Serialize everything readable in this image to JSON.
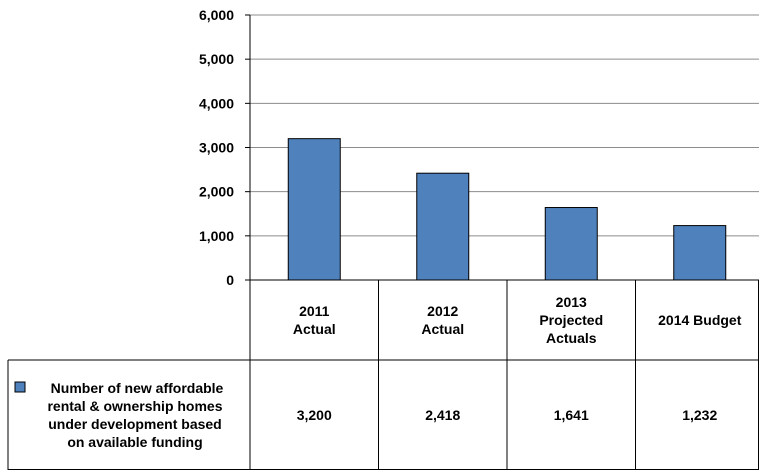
{
  "chart_data": {
    "type": "bar",
    "title": "",
    "xlabel": "",
    "ylabel": "",
    "categories": [
      [
        "2011",
        "Actual"
      ],
      [
        "2012",
        "Actual"
      ],
      [
        "2013",
        "Projected",
        "Actuals"
      ],
      [
        "2014 Budget"
      ]
    ],
    "series": [
      {
        "name_lines": [
          "Number of new affordable",
          "rental & ownership homes",
          "under development based",
          "on available funding"
        ],
        "values": [
          3200,
          2418,
          1641,
          1232
        ],
        "value_labels": [
          "3,200",
          "2,418",
          "1,641",
          "1,232"
        ],
        "color": "#4F81BD"
      }
    ],
    "ylim": [
      0,
      6000
    ],
    "yticks": [
      0,
      1000,
      2000,
      3000,
      4000,
      5000,
      6000
    ],
    "ytick_labels": [
      "0",
      "1,000",
      "2,000",
      "3,000",
      "4,000",
      "5,000",
      "6,000"
    ],
    "grid": true,
    "legend": "data-table-left"
  }
}
